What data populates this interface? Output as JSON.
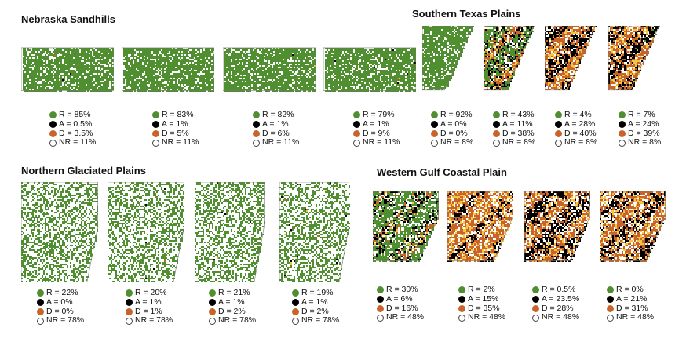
{
  "colors": {
    "resilient": "#4f8f2f",
    "altered": "#000000",
    "degraded": "#c8642a",
    "degraded_highlight": "#f5c542",
    "not_rangeland": "#ffffff"
  },
  "regions": [
    {
      "title": "Nebraska Sandhills",
      "panels": [
        {
          "R": "R = 85%",
          "A": "A = 0.5%",
          "D": "D = 3.5%",
          "NR": "NR = 11%",
          "r": 85,
          "a": 0.5,
          "d": 3.5,
          "nr": 11
        },
        {
          "R": "R = 83%",
          "A": "A = 1%",
          "D": "D = 5%",
          "NR": "NR = 11%",
          "r": 83,
          "a": 1,
          "d": 5,
          "nr": 11
        },
        {
          "R": "R = 82%",
          "A": "A = 1%",
          "D": "D = 6%",
          "NR": "NR = 11%",
          "r": 82,
          "a": 1,
          "d": 6,
          "nr": 11
        },
        {
          "R": "R = 79%",
          "A": "A = 1%",
          "D": "D = 9%",
          "NR": "NR = 11%",
          "r": 79,
          "a": 1,
          "d": 9,
          "nr": 11
        }
      ]
    },
    {
      "title": "Southern Texas Plains",
      "panels": [
        {
          "R": "R = 92%",
          "A": "A = 0%",
          "D": "D = 0%",
          "NR": "NR = 8%",
          "r": 92,
          "a": 0,
          "d": 0,
          "nr": 8
        },
        {
          "R": "R = 43%",
          "A": "A = 11%",
          "D": "D = 38%",
          "NR": "NR = 8%",
          "r": 43,
          "a": 11,
          "d": 38,
          "nr": 8
        },
        {
          "R": "R = 4%",
          "A": "A = 28%",
          "D": "D = 40%",
          "NR": "NR = 8%",
          "r": 4,
          "a": 28,
          "d": 40,
          "nr": 8
        },
        {
          "R": "R = 7%",
          "A": "A = 24%",
          "D": "D = 39%",
          "NR": "NR = 8%",
          "r": 7,
          "a": 24,
          "d": 39,
          "nr": 8
        }
      ]
    },
    {
      "title": "Northern Glaciated Plains",
      "panels": [
        {
          "R": "R = 22%",
          "A": "A = 0%",
          "D": "D = 0%",
          "NR": "NR = 78%",
          "r": 22,
          "a": 0,
          "d": 0,
          "nr": 78
        },
        {
          "R": "R = 20%",
          "A": "A = 1%",
          "D": "D = 1%",
          "NR": "NR = 78%",
          "r": 20,
          "a": 1,
          "d": 1,
          "nr": 78
        },
        {
          "R": "R = 21%",
          "A": "A = 1%",
          "D": "D = 2%",
          "NR": "NR = 78%",
          "r": 21,
          "a": 1,
          "d": 2,
          "nr": 78
        },
        {
          "R": "R = 19%",
          "A": "A = 1%",
          "D": "D = 2%",
          "NR": "NR = 78%",
          "r": 19,
          "a": 1,
          "d": 2,
          "nr": 78
        }
      ]
    },
    {
      "title": "Western Gulf Coastal Plain",
      "panels": [
        {
          "R": "R = 30%",
          "A": "A = 6%",
          "D": "D = 16%",
          "NR": "NR = 48%",
          "r": 30,
          "a": 6,
          "d": 16,
          "nr": 48
        },
        {
          "R": "R = 2%",
          "A": "A = 15%",
          "D": "D = 35%",
          "NR": "NR = 48%",
          "r": 2,
          "a": 15,
          "d": 35,
          "nr": 48
        },
        {
          "R": "R = 0.5%",
          "A": "A = 23.5%",
          "D": "D = 28%",
          "NR": "NR = 48%",
          "r": 0.5,
          "a": 23.5,
          "d": 28,
          "nr": 48
        },
        {
          "R": "R = 0%",
          "A": "A = 21%",
          "D": "D = 31%",
          "NR": "NR = 48%",
          "r": 0,
          "a": 21,
          "d": 31,
          "nr": 48
        }
      ]
    }
  ]
}
